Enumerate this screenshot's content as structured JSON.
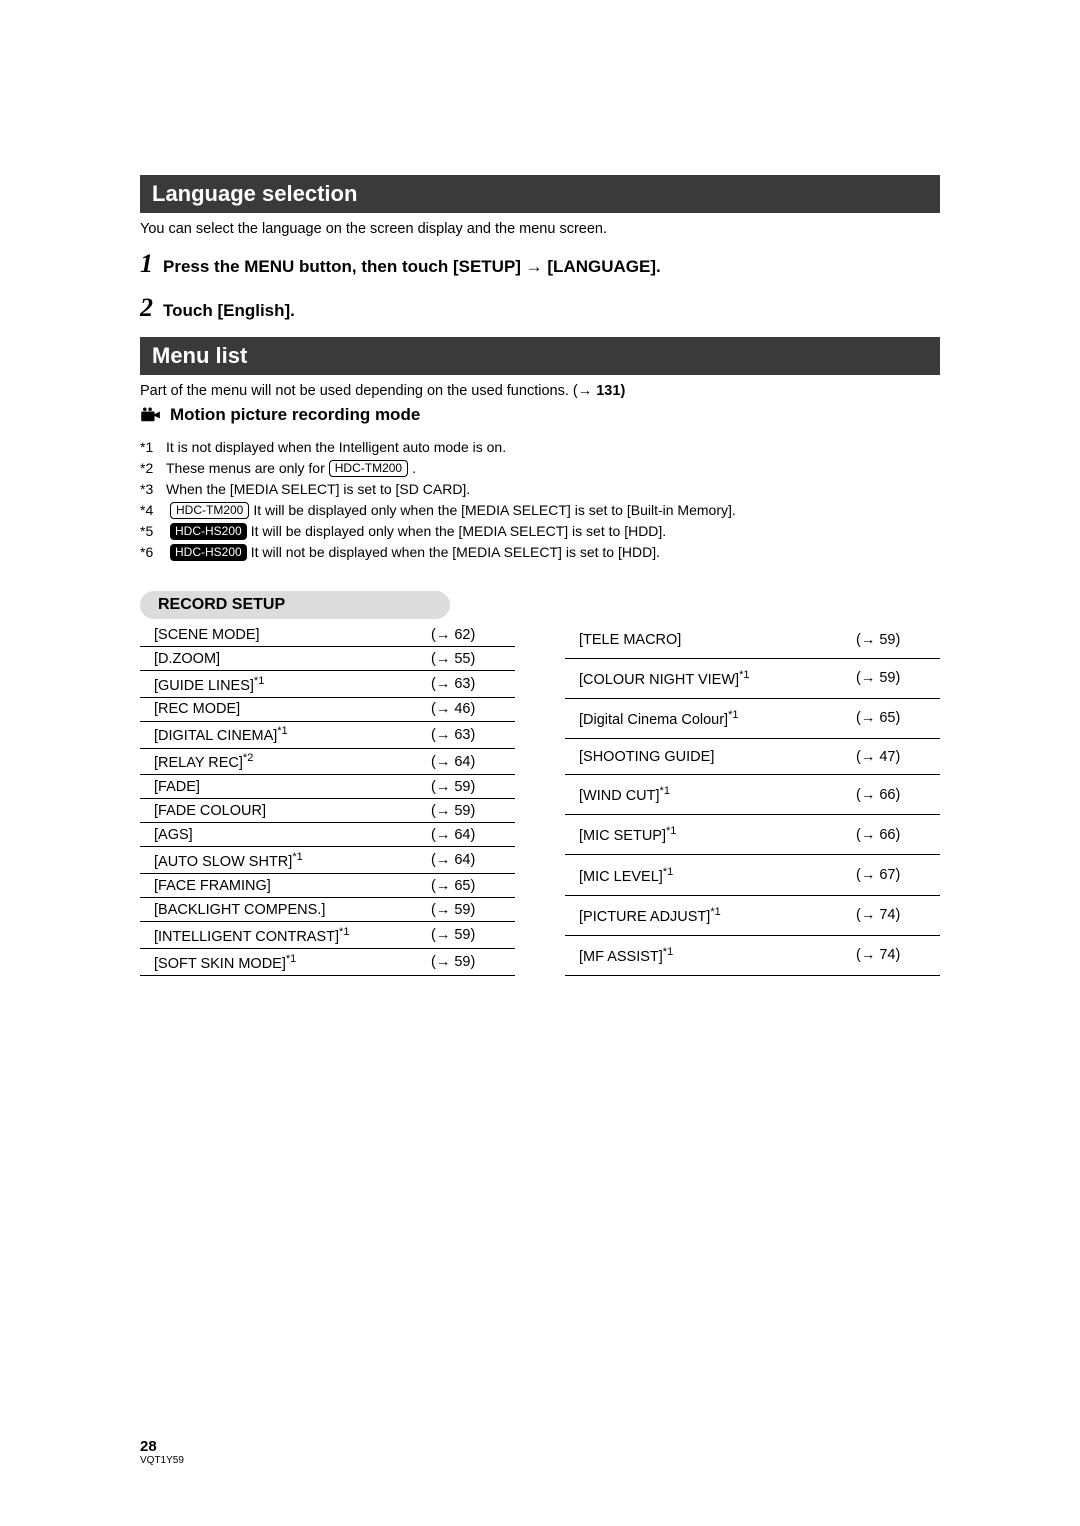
{
  "colors": {
    "header_bg": "#3a3a3a",
    "header_fg": "#ffffff",
    "text": "#000000",
    "pill_bg": "#dcdcdc",
    "page_bg": "#ffffff",
    "rule": "#000000"
  },
  "section1": {
    "title": "Language selection",
    "intro": "You can select the language on the screen display and the menu screen.",
    "steps": [
      {
        "num": "1",
        "text": "Press the MENU button, then touch [SETUP] → [LANGUAGE]."
      },
      {
        "num": "2",
        "text": "Touch [English]."
      }
    ]
  },
  "section2": {
    "title": "Menu list",
    "intro_prefix": "Part of the menu will not be used depending on the used functions. (",
    "intro_ref": "→ 131)",
    "mode_label": "Motion picture recording mode"
  },
  "badges": {
    "tm200": "HDC-TM200",
    "hs200": "HDC-HS200"
  },
  "footnotes": [
    {
      "marker": "*1",
      "pre": "",
      "badge": null,
      "badge_style": null,
      "post": "It is not displayed when the Intelligent auto mode is on."
    },
    {
      "marker": "*2",
      "pre": "These menus are only for ",
      "badge": "HDC-TM200",
      "badge_style": "outline",
      "post": "."
    },
    {
      "marker": "*3",
      "pre": "",
      "badge": null,
      "badge_style": null,
      "post": "When the [MEDIA SELECT] is set to [SD CARD]."
    },
    {
      "marker": "*4",
      "pre": "",
      "badge": "HDC-TM200",
      "badge_style": "outline",
      "post": " It will be displayed only when the [MEDIA SELECT] is set to [Built-in Memory]."
    },
    {
      "marker": "*5",
      "pre": "",
      "badge": "HDC-HS200",
      "badge_style": "solid",
      "post": " It will be displayed only when the [MEDIA SELECT] is set to [HDD]."
    },
    {
      "marker": "*6",
      "pre": "",
      "badge": "HDC-HS200",
      "badge_style": "solid",
      "post": " It will not be displayed when the [MEDIA SELECT] is set to [HDD]."
    }
  ],
  "record_setup": {
    "heading": "RECORD SETUP",
    "left": [
      {
        "label": "[SCENE MODE]",
        "sup": "",
        "ref": "(→ 62)"
      },
      {
        "label": "[D.ZOOM]",
        "sup": "",
        "ref": "(→ 55)"
      },
      {
        "label": "[GUIDE LINES]",
        "sup": "*1",
        "ref": "(→ 63)"
      },
      {
        "label": "[REC MODE]",
        "sup": "",
        "ref": "(→ 46)"
      },
      {
        "label": "[DIGITAL CINEMA]",
        "sup": "*1",
        "ref": "(→ 63)"
      },
      {
        "label": "[RELAY REC]",
        "sup": "*2",
        "ref": "(→ 64)"
      },
      {
        "label": "[FADE]",
        "sup": "",
        "ref": "(→ 59)"
      },
      {
        "label": "[FADE COLOUR]",
        "sup": "",
        "ref": "(→ 59)"
      },
      {
        "label": "[AGS]",
        "sup": "",
        "ref": "(→ 64)"
      },
      {
        "label": "[AUTO SLOW SHTR]",
        "sup": "*1",
        "ref": "(→ 64)"
      },
      {
        "label": "[FACE FRAMING]",
        "sup": "",
        "ref": "(→ 65)"
      },
      {
        "label": "[BACKLIGHT COMPENS.]",
        "sup": "",
        "ref": "(→ 59)"
      },
      {
        "label": "[INTELLIGENT CONTRAST]",
        "sup": "*1",
        "ref": "(→ 59)"
      },
      {
        "label": "[SOFT SKIN MODE]",
        "sup": "*1",
        "ref": "(→ 59)"
      }
    ],
    "right": [
      {
        "label": "[TELE MACRO]",
        "sup": "",
        "ref": "(→ 59)"
      },
      {
        "label": "[COLOUR NIGHT VIEW]",
        "sup": "*1",
        "ref": "(→ 59)"
      },
      {
        "label": "[Digital Cinema Colour]",
        "sup": "*1",
        "ref": "(→ 65)"
      },
      {
        "label": "[SHOOTING GUIDE]",
        "sup": "",
        "ref": "(→ 47)"
      },
      {
        "label": "[WIND CUT]",
        "sup": "*1",
        "ref": "(→ 66)"
      },
      {
        "label": "[MIC SETUP]",
        "sup": "*1",
        "ref": "(→ 66)"
      },
      {
        "label": "[MIC LEVEL]",
        "sup": "*1",
        "ref": "(→ 67)"
      },
      {
        "label": "[PICTURE ADJUST]",
        "sup": "*1",
        "ref": "(→ 74)"
      },
      {
        "label": "[MF ASSIST]",
        "sup": "*1",
        "ref": "(→ 74)"
      }
    ]
  },
  "footer": {
    "page_num": "28",
    "doc_id": "VQT1Y59"
  }
}
